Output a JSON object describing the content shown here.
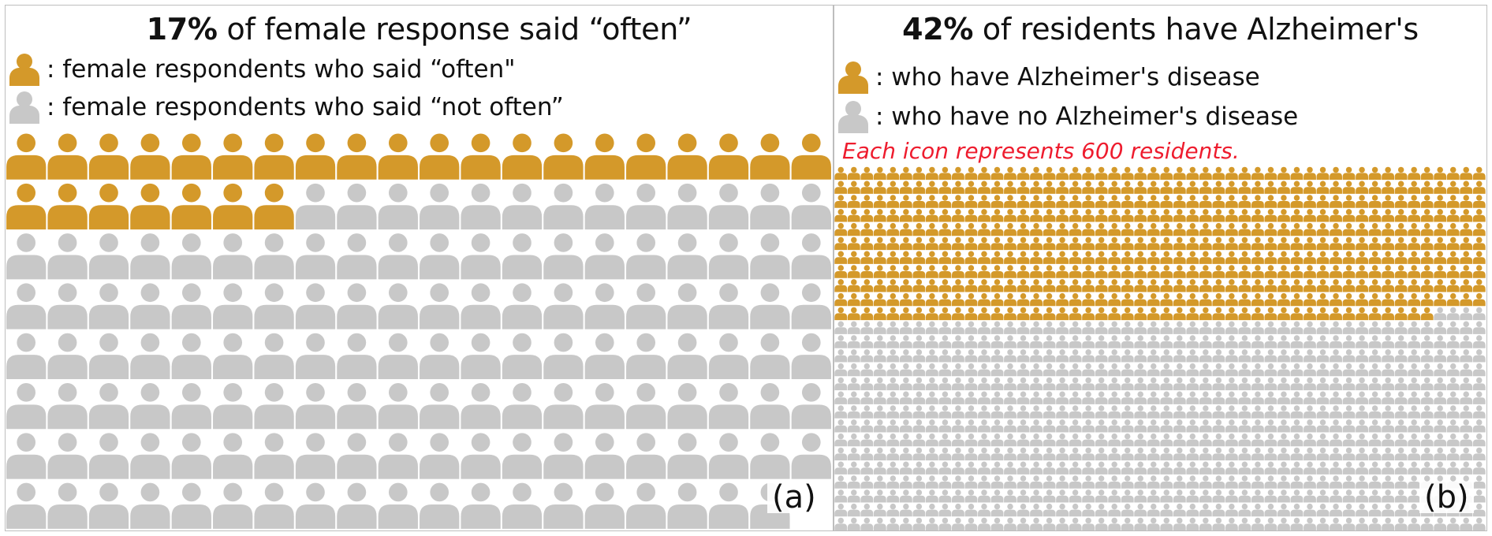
{
  "colors": {
    "highlight": "#D4992A",
    "rest": "#C8C8C8",
    "note": "#EE1C2E"
  },
  "panel_a": {
    "title_bold": "17%",
    "title_rest": " of female response said “often”",
    "legend_often": ": female respondents  who said “often\"",
    "legend_not_often": ": female respondents who said “not often”",
    "label": "(a)"
  },
  "panel_b": {
    "title_bold": "42%",
    "title_rest": " of residents have Alzheimer's",
    "legend_have": ": who have Alzheimer's disease",
    "legend_no": ": who have no Alzheimer's disease",
    "note": "Each icon represents 600 residents.",
    "label": "(b)"
  },
  "chart_data": [
    {
      "type": "pictograph",
      "panel": "(a)",
      "title": "17% of female response said “often”",
      "columns": 20,
      "rows": 8,
      "icons_total": 159,
      "highlight_count": 27,
      "highlight_percent": 17,
      "categories": [
        "female respondents who said “often”",
        "female respondents who said “not often”"
      ],
      "values": [
        27,
        132
      ]
    },
    {
      "type": "pictograph",
      "panel": "(b)",
      "title": "42% of residents have Alzheimer's",
      "columns": 50,
      "rows": 26,
      "icons_total": 1300,
      "highlight_count": 546,
      "highlight_percent": 42,
      "residents_per_icon": 600,
      "categories": [
        "who have Alzheimer's disease",
        "who have no Alzheimer's disease"
      ],
      "values": [
        546,
        754
      ]
    }
  ]
}
